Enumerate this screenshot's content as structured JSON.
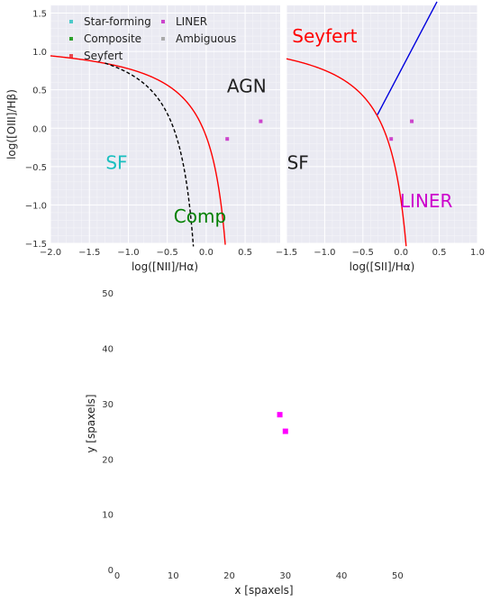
{
  "chart_data": [
    {
      "type": "scatter",
      "id": "bpt_nii",
      "xlabel": "log([NII]/Hα)",
      "ylabel": "log([OIII]/Hβ)",
      "xlim": [
        -2.0,
        0.95
      ],
      "ylim": [
        -1.5,
        1.6
      ],
      "xticks": [
        -2.0,
        -1.5,
        -1.0,
        -0.5,
        0.0,
        0.5
      ],
      "xtick_labels": [
        "−2.0",
        "−1.5",
        "−1.0",
        "−0.5",
        "0.0",
        "0.5"
      ],
      "yticks": [
        -1.5,
        -1.0,
        -0.5,
        0.0,
        0.5,
        1.0,
        1.5
      ],
      "ytick_labels": [
        "−1.5",
        "−1.0",
        "−0.5",
        "0.0",
        "0.5",
        "1.0",
        "1.5"
      ],
      "grid": true,
      "legend": {
        "placement": "top-left",
        "entries": [
          {
            "label": "Star-forming",
            "color": "#4cc9c9"
          },
          {
            "label": "Composite",
            "color": "#2ca02c"
          },
          {
            "label": "Seyfert",
            "color": "#e8474f"
          },
          {
            "label": "LINER",
            "color": "#cc44cc"
          },
          {
            "label": "Ambiguous",
            "color": "#aaaaaa"
          }
        ]
      },
      "region_labels": [
        {
          "text": "SF",
          "x": -1.15,
          "y": -0.45,
          "color": "#1abfbf"
        },
        {
          "text": "AGN",
          "x": 0.52,
          "y": 0.55,
          "color": "#222222"
        },
        {
          "text": "Comp",
          "x": -0.08,
          "y": -1.15,
          "color": "#008000"
        }
      ],
      "curves": [
        {
          "name": "kewley",
          "color": "#ff0000",
          "style": "solid"
        },
        {
          "name": "kauffmann",
          "color": "#000000",
          "style": "dashed"
        }
      ],
      "points": [
        {
          "x": 0.27,
          "y": -0.14,
          "class": "LINER"
        },
        {
          "x": 0.7,
          "y": 0.09,
          "class": "LINER"
        }
      ]
    },
    {
      "type": "scatter",
      "id": "bpt_sii",
      "xlabel": "log([SII]/Hα)",
      "ylabel": "",
      "xlim": [
        -1.5,
        1.0
      ],
      "ylim": [
        -1.5,
        1.6
      ],
      "xticks": [
        -1.5,
        -1.0,
        -0.5,
        0.0,
        0.5,
        1.0
      ],
      "xtick_labels": [
        "−1.5",
        "−1.0",
        "−0.5",
        "0.0",
        "0.5",
        "1.0"
      ],
      "grid": true,
      "region_labels": [
        {
          "text": "Seyfert",
          "x": -1.0,
          "y": 1.2,
          "color": "#ff0000"
        },
        {
          "text": "SF",
          "x": -1.35,
          "y": -0.45,
          "color": "#222222"
        },
        {
          "text": "LINER",
          "x": 0.33,
          "y": -0.95,
          "color": "#cc00cc"
        }
      ],
      "curves": [
        {
          "name": "kewley_sii",
          "color": "#ff0000",
          "style": "solid"
        },
        {
          "name": "seyfert_liner",
          "color": "#0000dd",
          "style": "solid"
        }
      ],
      "points": [
        {
          "x": -0.13,
          "y": -0.14,
          "class": "LINER"
        },
        {
          "x": 0.14,
          "y": 0.09,
          "class": "LINER"
        }
      ]
    },
    {
      "type": "scatter",
      "id": "spaxel_map",
      "xlabel": "x [spaxels]",
      "ylabel": "y [spaxels]",
      "xlim": [
        0,
        53
      ],
      "ylim": [
        0,
        51
      ],
      "xticks": [
        0,
        10,
        20,
        30,
        40,
        50
      ],
      "xtick_labels": [
        "0",
        "10",
        "20",
        "30",
        "40",
        "50"
      ],
      "yticks": [
        0,
        10,
        20,
        30,
        40,
        50
      ],
      "ytick_labels": [
        "0",
        "10",
        "20",
        "30",
        "40",
        "50"
      ],
      "grid": false,
      "points": [
        {
          "x": 29,
          "y": 28,
          "class": "LINER",
          "color": "#ff00ff"
        },
        {
          "x": 30,
          "y": 25,
          "class": "LINER",
          "color": "#ff00ff"
        }
      ]
    }
  ]
}
